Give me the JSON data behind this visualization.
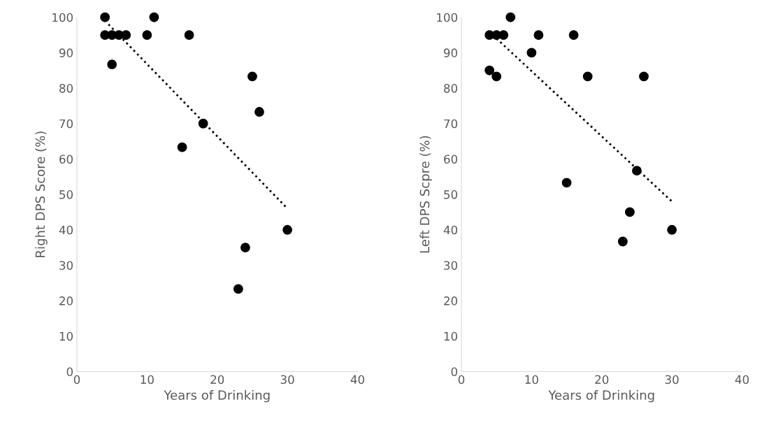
{
  "chart_data": [
    {
      "type": "scatter",
      "xlabel": "Years of Drinking",
      "ylabel": "Right DPS Score (%)",
      "xlim": [
        0,
        40
      ],
      "ylim": [
        0,
        100
      ],
      "xticks": [
        0,
        10,
        20,
        30,
        40
      ],
      "yticks": [
        0,
        10,
        20,
        30,
        40,
        50,
        60,
        70,
        80,
        90,
        100
      ],
      "grid": false,
      "legend": false,
      "series": [
        {
          "marker": "circle",
          "color": "#000000",
          "x": [
            4,
            4,
            5,
            6,
            7,
            5,
            10,
            11,
            16,
            25,
            26,
            18,
            15,
            30,
            24,
            23
          ],
          "values": [
            100,
            95,
            95,
            95,
            95,
            86.7,
            95,
            100,
            95,
            83.3,
            73.3,
            70,
            63.3,
            40,
            35,
            23.3
          ]
        },
        {
          "type": "line",
          "color": "#000000",
          "line_style": "dotted",
          "x": [
            4.5,
            30
          ],
          "values": [
            98,
            46
          ]
        }
      ]
    },
    {
      "type": "scatter",
      "xlabel": "Years of Drinking",
      "ylabel": "Left DPS Scpre (%)",
      "xlim": [
        0,
        40
      ],
      "ylim": [
        0,
        100
      ],
      "xticks": [
        0,
        10,
        20,
        30,
        40
      ],
      "yticks": [
        0,
        10,
        20,
        30,
        40,
        50,
        60,
        70,
        80,
        90,
        100
      ],
      "grid": false,
      "legend": false,
      "series": [
        {
          "marker": "circle",
          "color": "#000000",
          "x": [
            4,
            5,
            6,
            7,
            4,
            5,
            10,
            11,
            16,
            18,
            26,
            25,
            15,
            24,
            23,
            30
          ],
          "values": [
            95,
            95,
            95,
            100,
            85,
            83.3,
            90,
            95,
            95,
            83.3,
            83.3,
            56.7,
            53.3,
            45,
            36.7,
            40
          ]
        },
        {
          "type": "line",
          "color": "#000000",
          "line_style": "dotted",
          "x": [
            5,
            30
          ],
          "values": [
            94,
            48
          ]
        }
      ]
    }
  ]
}
